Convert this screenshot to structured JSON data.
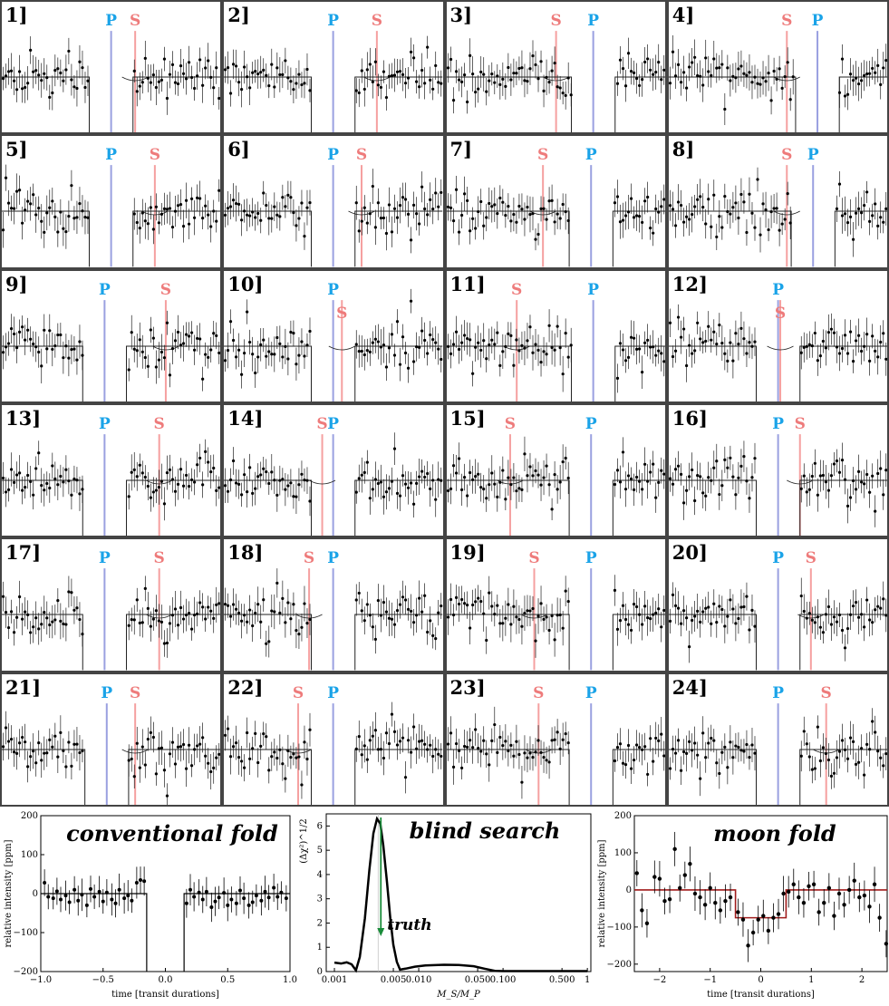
{
  "colors": {
    "planet_line": "#9aa0e0",
    "planet_label": "#1aa3e8",
    "moon_line": "#f5a0a0",
    "moon_label": "#ee7b7b",
    "truth_arrow": "#1a8c3a",
    "moon_model": "#a01c1c",
    "frame": "#444444"
  },
  "chart_data": [
    {
      "type": "scatter",
      "description_kind": "transit-panels",
      "x_range": [
        -2.5,
        2.5
      ],
      "y_range": [
        -220,
        220
      ],
      "transit_half_width": 0.5,
      "panels": [
        {
          "label": "1]",
          "P": 0.0,
          "S": 0.55,
          "seed": 11
        },
        {
          "label": "2]",
          "P": 0.0,
          "S": 1.0,
          "seed": 12
        },
        {
          "label": "3]",
          "P": 0.85,
          "S": 0.0,
          "seed": 13
        },
        {
          "label": "4]",
          "P": 0.9,
          "S": 0.2,
          "seed": 14
        },
        {
          "label": "5]",
          "P": 0.0,
          "S": 1.0,
          "seed": 15
        },
        {
          "label": "6]",
          "P": 0.0,
          "S": 0.65,
          "seed": 16
        },
        {
          "label": "7]",
          "P": 0.8,
          "S": -0.3,
          "seed": 17
        },
        {
          "label": "8]",
          "P": 0.8,
          "S": 0.2,
          "seed": 18
        },
        {
          "label": "9]",
          "P": -0.15,
          "S": 1.25,
          "seed": 19
        },
        {
          "label": "10]",
          "P": 0.0,
          "S": 0.2,
          "seed": 20
        },
        {
          "label": "11]",
          "P": 0.85,
          "S": -0.9,
          "seed": 21
        },
        {
          "label": "12]",
          "P": 0.0,
          "S": 0.05,
          "seed": 22
        },
        {
          "label": "13]",
          "P": -0.15,
          "S": 1.1,
          "seed": 23
        },
        {
          "label": "14]",
          "P": 0.0,
          "S": -0.25,
          "seed": 24
        },
        {
          "label": "15]",
          "P": 0.8,
          "S": -1.05,
          "seed": 25
        },
        {
          "label": "16]",
          "P": 0.0,
          "S": 0.5,
          "seed": 26
        },
        {
          "label": "17]",
          "P": -0.15,
          "S": 1.1,
          "seed": 27
        },
        {
          "label": "18]",
          "P": 0.0,
          "S": -0.55,
          "seed": 28
        },
        {
          "label": "19]",
          "P": 0.8,
          "S": -0.5,
          "seed": 29
        },
        {
          "label": "20]",
          "P": 0.0,
          "S": 0.75,
          "seed": 30
        },
        {
          "label": "21]",
          "P": -0.1,
          "S": 0.55,
          "seed": 31
        },
        {
          "label": "22]",
          "P": 0.0,
          "S": -0.8,
          "seed": 32
        },
        {
          "label": "23]",
          "P": 0.8,
          "S": -0.4,
          "seed": 33
        },
        {
          "label": "24]",
          "P": 0.0,
          "S": 1.1,
          "seed": 34
        }
      ],
      "marker_labels": {
        "planet": "P",
        "moon": "S"
      }
    },
    {
      "type": "scatter",
      "title": "conventional fold",
      "xlabel": "time [transit durations]",
      "ylabel": "relative intensity [ppm]",
      "xlim": [
        -1.0,
        1.0
      ],
      "ylim": [
        -200,
        200
      ],
      "x_ticks": [
        "−1.0",
        "−0.5",
        "0.0",
        "0.5",
        "1.0"
      ],
      "y_ticks": [
        "200",
        "100",
        "0",
        "−100",
        "−200"
      ],
      "points": [
        [
          -0.97,
          28
        ],
        [
          -0.94,
          -8
        ],
        [
          -0.9,
          -12
        ],
        [
          -0.87,
          6
        ],
        [
          -0.84,
          -15
        ],
        [
          -0.8,
          -5
        ],
        [
          -0.77,
          -22
        ],
        [
          -0.73,
          10
        ],
        [
          -0.7,
          -18
        ],
        [
          -0.67,
          -3
        ],
        [
          -0.63,
          -30
        ],
        [
          -0.6,
          12
        ],
        [
          -0.57,
          -8
        ],
        [
          -0.53,
          5
        ],
        [
          -0.5,
          -20
        ],
        [
          -0.47,
          3
        ],
        [
          -0.43,
          -15
        ],
        [
          -0.4,
          -25
        ],
        [
          -0.37,
          10
        ],
        [
          -0.33,
          -12
        ],
        [
          -0.3,
          -5
        ],
        [
          -0.27,
          -18
        ],
        [
          -0.23,
          28
        ],
        [
          -0.2,
          35
        ],
        [
          -0.17,
          32
        ],
        [
          0.17,
          -25
        ],
        [
          0.2,
          10
        ],
        [
          0.23,
          -8
        ],
        [
          0.27,
          3
        ],
        [
          0.3,
          -15
        ],
        [
          0.33,
          5
        ],
        [
          0.37,
          -35
        ],
        [
          0.4,
          -20
        ],
        [
          0.43,
          -10
        ],
        [
          0.47,
          2
        ],
        [
          0.5,
          -30
        ],
        [
          0.53,
          -15
        ],
        [
          0.57,
          -25
        ],
        [
          0.6,
          8
        ],
        [
          0.63,
          -12
        ],
        [
          0.67,
          -30
        ],
        [
          0.7,
          -22
        ],
        [
          0.73,
          -5
        ],
        [
          0.77,
          -18
        ],
        [
          0.8,
          5
        ],
        [
          0.83,
          -10
        ],
        [
          0.87,
          15
        ],
        [
          0.9,
          -8
        ],
        [
          0.93,
          3
        ],
        [
          0.97,
          -12
        ]
      ]
    },
    {
      "type": "line",
      "title": "blind search",
      "xlabel": "M_S/M_P",
      "ylabel": "(Δχ²)^1/2",
      "x_scale": "log",
      "xlim": [
        0.0008,
        1.1
      ],
      "ylim": [
        0,
        6.5
      ],
      "x_ticks": [
        "0.001",
        "0.005",
        "0.010",
        "0.050",
        "0.100",
        "0.500",
        "1"
      ],
      "x_tick_values": [
        0.001,
        0.005,
        0.01,
        0.05,
        0.1,
        0.5,
        1
      ],
      "y_ticks": [
        "0",
        "1",
        "2",
        "3",
        "4",
        "5",
        "6"
      ],
      "annotation": "truth",
      "truth_x": 0.0033,
      "curve": [
        [
          0.001,
          0.37
        ],
        [
          0.0012,
          0.33
        ],
        [
          0.0014,
          0.38
        ],
        [
          0.0016,
          0.3
        ],
        [
          0.0018,
          0.05
        ],
        [
          0.002,
          0.6
        ],
        [
          0.0023,
          2.2
        ],
        [
          0.0026,
          4.2
        ],
        [
          0.0029,
          5.7
        ],
        [
          0.0032,
          6.3
        ],
        [
          0.0035,
          6.1
        ],
        [
          0.0038,
          5.2
        ],
        [
          0.0042,
          3.7
        ],
        [
          0.0046,
          2.2
        ],
        [
          0.005,
          1.1
        ],
        [
          0.0055,
          0.4
        ],
        [
          0.006,
          0.08
        ],
        [
          0.007,
          0.12
        ],
        [
          0.009,
          0.2
        ],
        [
          0.012,
          0.25
        ],
        [
          0.02,
          0.28
        ],
        [
          0.03,
          0.27
        ],
        [
          0.045,
          0.22
        ],
        [
          0.06,
          0.12
        ],
        [
          0.08,
          0.03
        ],
        [
          0.1,
          0.02
        ],
        [
          0.2,
          0.02
        ],
        [
          0.5,
          0.02
        ],
        [
          1.0,
          0.02
        ]
      ]
    },
    {
      "type": "scatter",
      "title": "moon fold",
      "xlabel": "time [transit durations]",
      "ylabel": "relative intensity [ppm]",
      "xlim": [
        -2.5,
        2.5
      ],
      "ylim": [
        -220,
        200
      ],
      "x_ticks": [
        "−2",
        "−1",
        "0",
        "1",
        "2"
      ],
      "x_tick_values": [
        -2,
        -1,
        0,
        1,
        2
      ],
      "y_ticks": [
        "200",
        "100",
        "0",
        "−100",
        "−200"
      ],
      "y_tick_values": [
        200,
        100,
        0,
        -100,
        -200
      ],
      "model": [
        [
          -2.5,
          0
        ],
        [
          -0.5,
          0
        ],
        [
          -0.5,
          -75
        ],
        [
          0.5,
          -75
        ],
        [
          0.5,
          0
        ],
        [
          2.5,
          0
        ]
      ],
      "points": [
        [
          -2.45,
          45
        ],
        [
          -2.35,
          -55
        ],
        [
          -2.25,
          -90
        ],
        [
          -2.1,
          35
        ],
        [
          -2.0,
          30
        ],
        [
          -1.9,
          -30
        ],
        [
          -1.8,
          -25
        ],
        [
          -1.7,
          110
        ],
        [
          -1.6,
          5
        ],
        [
          -1.5,
          40
        ],
        [
          -1.4,
          70
        ],
        [
          -1.3,
          -10
        ],
        [
          -1.2,
          -20
        ],
        [
          -1.1,
          -40
        ],
        [
          -1.0,
          5
        ],
        [
          -0.9,
          -35
        ],
        [
          -0.8,
          -55
        ],
        [
          -0.7,
          -30
        ],
        [
          -0.6,
          -20
        ],
        [
          -0.45,
          -60
        ],
        [
          -0.35,
          -80
        ],
        [
          -0.25,
          -150
        ],
        [
          -0.15,
          -115
        ],
        [
          -0.05,
          -80
        ],
        [
          0.05,
          -70
        ],
        [
          0.15,
          -110
        ],
        [
          0.25,
          -75
        ],
        [
          0.35,
          -65
        ],
        [
          0.45,
          -10
        ],
        [
          0.55,
          -5
        ],
        [
          0.65,
          15
        ],
        [
          0.75,
          -20
        ],
        [
          0.85,
          -35
        ],
        [
          0.95,
          10
        ],
        [
          1.05,
          15
        ],
        [
          1.15,
          -60
        ],
        [
          1.25,
          -35
        ],
        [
          1.35,
          5
        ],
        [
          1.45,
          -70
        ],
        [
          1.55,
          -10
        ],
        [
          1.65,
          -40
        ],
        [
          1.75,
          0
        ],
        [
          1.85,
          25
        ],
        [
          1.95,
          -20
        ],
        [
          2.05,
          -15
        ],
        [
          2.15,
          -45
        ],
        [
          2.25,
          15
        ],
        [
          2.35,
          -75
        ],
        [
          2.48,
          -145
        ]
      ]
    }
  ]
}
